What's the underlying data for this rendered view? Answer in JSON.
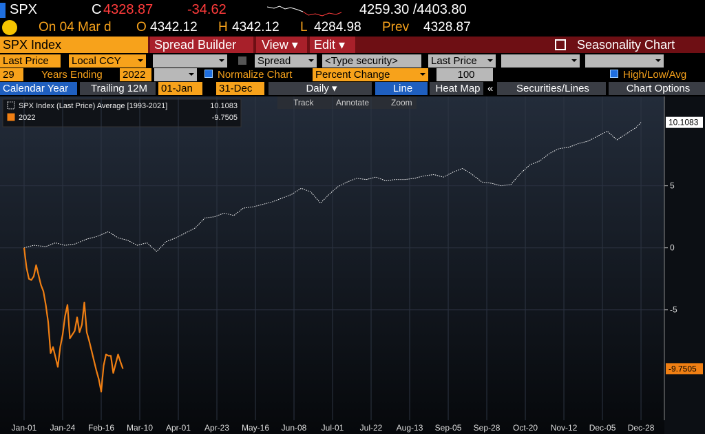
{
  "header": {
    "ticker": "SPX",
    "c_label": "C",
    "last": "4328.87",
    "change": "-34.62",
    "range": "4259.30 /4403.80",
    "date": "On 04 Mar d",
    "open_label": "O",
    "open": "4342.12",
    "high_label": "H",
    "high": "4342.12",
    "low_label": "L",
    "low": "4284.98",
    "prev_label": "Prev",
    "prev": "4328.87"
  },
  "toolbar": {
    "security": "SPX Index",
    "spread_builder": "Spread Builder",
    "view": "View ▾",
    "edit": "Edit ▾",
    "title": "Seasonality Chart"
  },
  "controls": {
    "field": "Last Price",
    "currency": "Local CCY",
    "spread": "Spread",
    "type_security": "<Type security>",
    "field2": "Last Price",
    "years": "29",
    "years_ending": "Years Ending",
    "end_year": "2022",
    "normalize": "Normalize Chart",
    "percent_change": "Percent Change",
    "base": "100",
    "high_low_avg": "High/Low/Avg",
    "calendar_year": "Calendar Year",
    "trailing": "Trailing 12M",
    "start": "01-Jan",
    "end": "31-Dec",
    "period": "Daily ▾",
    "line": "Line",
    "heat_map": "Heat Map",
    "collapse": "«",
    "securities_lines": "Securities/Lines",
    "chart_options": "Chart Options",
    "track": "Track",
    "annotate": "Annotate",
    "zoom": "Zoom"
  },
  "chart_data": {
    "type": "line",
    "grid": true,
    "xlim": [
      -10,
      265.7
    ],
    "ylim": [
      -13.9,
      12.2
    ],
    "xticks": [
      {
        "value": 0,
        "label": "Jan-01"
      },
      {
        "value": 16,
        "label": "Jan-24"
      },
      {
        "value": 32,
        "label": "Feb-16"
      },
      {
        "value": 48,
        "label": "Mar-10"
      },
      {
        "value": 64,
        "label": "Apr-01"
      },
      {
        "value": 80,
        "label": "Apr-23"
      },
      {
        "value": 96,
        "label": "May-16"
      },
      {
        "value": 112,
        "label": "Jun-08"
      },
      {
        "value": 128,
        "label": "Jul-01"
      },
      {
        "value": 144,
        "label": "Jul-22"
      },
      {
        "value": 160,
        "label": "Aug-13"
      },
      {
        "value": 176,
        "label": "Sep-05"
      },
      {
        "value": 192,
        "label": "Sep-28"
      },
      {
        "value": 208,
        "label": "Oct-20"
      },
      {
        "value": 224,
        "label": "Nov-12"
      },
      {
        "value": 240,
        "label": "Dec-05"
      },
      {
        "value": 256,
        "label": "Dec-28"
      }
    ],
    "yticks": [
      -5,
      0,
      5
    ],
    "series": [
      {
        "name": "SPX Index (Last Price) Average [1993-2021]",
        "color": "#ffffff",
        "style": "dotted",
        "last": 10.1083,
        "x": [
          0,
          4,
          9,
          13,
          17,
          21,
          26,
          30,
          35,
          39,
          43,
          47,
          51,
          55,
          59,
          63,
          67,
          71,
          75,
          79,
          83,
          87,
          91,
          95,
          99,
          103,
          107,
          111,
          115,
          119,
          123,
          126,
          130,
          134,
          138,
          142,
          146,
          150,
          154,
          158,
          162,
          166,
          170,
          174,
          178,
          182,
          186,
          190,
          194,
          198,
          202,
          206,
          210,
          214,
          218,
          222,
          226,
          230,
          234,
          238,
          242,
          246,
          250,
          254,
          256
        ],
        "values": [
          0,
          0.2,
          0.1,
          0.4,
          0.2,
          0.3,
          0.7,
          0.9,
          1.3,
          0.8,
          0.6,
          0.2,
          0.4,
          -0.3,
          0.5,
          0.8,
          1.2,
          1.6,
          2.4,
          2.5,
          2.8,
          2.6,
          3.2,
          3.3,
          3.5,
          3.7,
          4.0,
          4.3,
          4.8,
          4.5,
          3.6,
          4.2,
          4.9,
          5.3,
          5.6,
          5.5,
          5.7,
          5.4,
          5.5,
          5.5,
          5.6,
          5.8,
          5.9,
          5.7,
          6.1,
          6.4,
          5.9,
          5.3,
          5.2,
          5.0,
          5.1,
          6.0,
          6.7,
          7.0,
          7.6,
          8.0,
          8.1,
          8.4,
          8.6,
          9.0,
          9.4,
          8.7,
          9.2,
          9.7,
          10.1083
        ]
      },
      {
        "name": "2022",
        "color": "#f07f13",
        "style": "solid",
        "last": -9.7505,
        "x": [
          0,
          1,
          2,
          3,
          4,
          5,
          7,
          8,
          9,
          10,
          11,
          12,
          14,
          15,
          16,
          17,
          18,
          19,
          21,
          22,
          23,
          24,
          25,
          26,
          27,
          28,
          30,
          31,
          32,
          33,
          34,
          35,
          36,
          37,
          39,
          40,
          41
        ],
        "values": [
          0,
          -1.6,
          -2.5,
          -2.6,
          -2.3,
          -1.4,
          -3.0,
          -3.5,
          -4.6,
          -6.0,
          -8.5,
          -8.0,
          -9.6,
          -8.0,
          -7.0,
          -5.5,
          -4.6,
          -7.3,
          -6.7,
          -5.6,
          -6.8,
          -6.2,
          -4.4,
          -6.8,
          -7.5,
          -8.3,
          -9.9,
          -10.6,
          -11.6,
          -9.5,
          -8.6,
          -8.7,
          -8.7,
          -10.1,
          -8.6,
          -9.2,
          -9.7505
        ]
      }
    ]
  }
}
